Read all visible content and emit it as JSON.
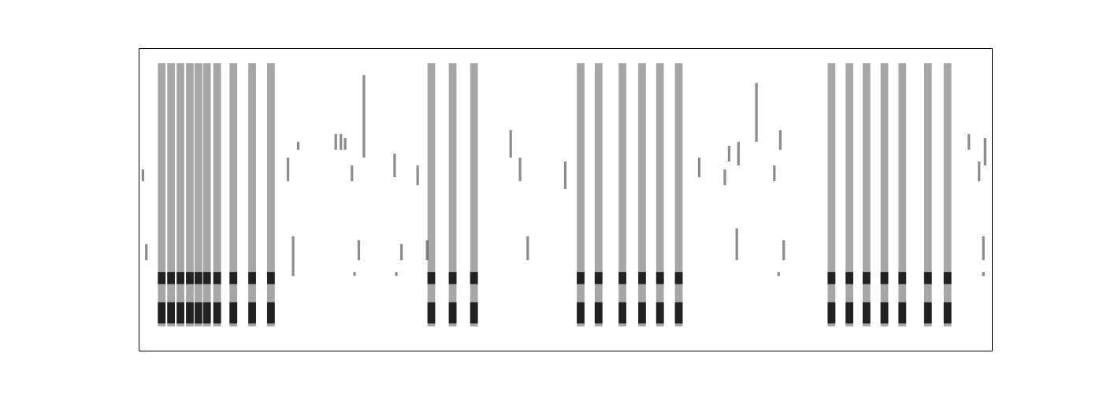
{
  "chart_data": {
    "type": "spectrogram",
    "xlim": [
      0,
      100
    ],
    "ylim": [
      0,
      100
    ],
    "tick_labels": false,
    "color": "#000000",
    "x": [
      2.7,
      3.8,
      4.9,
      6.0,
      7.0,
      8.0,
      9.2,
      11.1,
      13.3,
      15.5,
      34.3,
      36.8,
      39.3,
      51.8,
      53.9,
      56.7,
      59.0,
      61.1,
      63.3,
      81.2,
      83.3,
      85.3,
      87.4,
      89.5,
      92.5,
      94.8,
      2.7,
      3.8,
      4.9,
      6.0,
      7.0,
      8.0,
      9.2,
      11.1,
      13.3,
      15.5,
      34.3,
      36.8,
      39.3,
      51.8,
      53.9,
      56.7,
      59.0,
      61.1,
      63.3,
      81.2,
      83.3,
      85.3,
      87.4,
      89.5,
      92.5,
      94.8,
      2.7,
      3.8,
      4.9,
      6.0,
      7.0,
      8.0,
      9.2,
      11.1,
      13.3,
      15.5,
      34.3,
      36.8,
      39.3,
      51.8,
      53.9,
      56.7,
      59.0,
      61.1,
      63.3,
      81.2,
      83.3,
      85.3,
      87.4,
      89.5,
      92.5,
      94.8,
      0.5,
      0.9,
      17.5,
      18.7,
      18.1,
      23.1,
      23.7,
      24.2,
      25.0,
      25.8,
      26.4,
      30.0,
      30.8,
      32.7,
      33.8,
      43.6,
      44.7,
      45.6,
      50.0,
      65.7,
      68.7,
      69.2,
      70.3,
      70.1,
      72.4,
      74.5,
      75.2,
      75.6,
      97.3,
      98.5,
      99.2,
      99.0,
      25.3,
      30.2,
      75.0,
      99.0
    ],
    "duration": [
      0.9,
      0.9,
      0.9,
      0.9,
      0.9,
      0.9,
      0.9,
      0.9,
      0.9,
      0.9,
      0.9,
      0.9,
      0.9,
      0.9,
      0.9,
      0.9,
      0.9,
      0.9,
      0.9,
      0.9,
      0.9,
      0.9,
      0.9,
      0.9,
      0.9,
      0.9,
      0.9,
      0.9,
      0.9,
      0.9,
      0.9,
      0.9,
      0.9,
      0.9,
      0.9,
      0.9,
      0.9,
      0.9,
      0.9,
      0.9,
      0.9,
      0.9,
      0.9,
      0.9,
      0.9,
      0.9,
      0.9,
      0.9,
      0.9,
      0.9,
      0.9,
      0.9,
      0.9,
      0.9,
      0.9,
      0.9,
      0.9,
      0.9,
      0.9,
      0.9,
      0.9,
      0.9,
      0.9,
      0.9,
      0.9,
      0.9,
      0.9,
      0.9,
      0.9,
      0.9,
      0.9,
      0.9,
      0.9,
      0.9,
      0.9,
      0.9,
      0.9,
      0.9,
      0.3,
      0.3,
      0.3,
      0.3,
      0.3,
      0.3,
      0.3,
      0.3,
      0.3,
      0.3,
      0.3,
      0.3,
      0.3,
      0.3,
      0.3,
      0.3,
      0.3,
      0.3,
      0.3,
      0.3,
      0.3,
      0.3,
      0.3,
      0.3,
      0.3,
      0.3,
      0.3,
      0.3,
      0.3,
      0.3,
      0.3,
      0.3,
      0.3,
      0.3,
      0.3,
      0.3
    ],
    "low": [
      8,
      8,
      8,
      8,
      8,
      8,
      8,
      8,
      8,
      8,
      8,
      8,
      8,
      8,
      8,
      8,
      8,
      8,
      8,
      8,
      8,
      8,
      8,
      8,
      8,
      8,
      22,
      22,
      22,
      22,
      22,
      22,
      22,
      22,
      22,
      22,
      22,
      22,
      22,
      22,
      22,
      22,
      22,
      22,
      22,
      22,
      22,
      22,
      22,
      22,
      22,
      22,
      9,
      9,
      9,
      9,
      9,
      9,
      9,
      9,
      9,
      9,
      9,
      9,
      9,
      9,
      9,
      9,
      9,
      9,
      9,
      9,
      9,
      9,
      9,
      9,
      9,
      9,
      56.0,
      29.9,
      56.0,
      66.4,
      24.7,
      66.4,
      66.4,
      66.4,
      56.0,
      29.9,
      63.8,
      57.3,
      29.9,
      54.7,
      29.9,
      63.8,
      56.0,
      29.9,
      53.4,
      57.3,
      54.7,
      62.5,
      61.2,
      29.9,
      69.0,
      56.0,
      66.4,
      29.9,
      66.4,
      56.0,
      61.2,
      29.9,
      24.7,
      24.7,
      24.7,
      24.7
    ],
    "high": [
      95,
      95,
      95,
      95,
      95,
      95,
      95,
      95,
      95,
      95,
      95,
      95,
      95,
      95,
      95,
      95,
      95,
      95,
      95,
      95,
      95,
      95,
      95,
      95,
      95,
      95,
      26,
      26,
      26,
      26,
      26,
      26,
      26,
      26,
      26,
      26,
      26,
      26,
      26,
      26,
      26,
      26,
      26,
      26,
      26,
      26,
      26,
      26,
      26,
      26,
      26,
      26,
      16,
      16,
      16,
      16,
      16,
      16,
      16,
      16,
      16,
      16,
      16,
      16,
      16,
      16,
      16,
      16,
      16,
      16,
      16,
      16,
      16,
      16,
      16,
      16,
      16,
      16,
      59.9,
      35.2,
      63.8,
      69.0,
      37.8,
      71.6,
      71.6,
      70.3,
      61.2,
      36.5,
      91.1,
      65.1,
      35.2,
      61.2,
      36.5,
      72.9,
      63.8,
      37.8,
      62.5,
      63.8,
      59.9,
      67.7,
      69.0,
      40.4,
      88.5,
      61.2,
      72.9,
      36.5,
      71.6,
      62.5,
      70.3,
      37.8,
      26.0,
      26.0,
      26.0,
      26.0
    ],
    "intensity": [
      0.35,
      0.35,
      0.35,
      0.35,
      0.35,
      0.35,
      0.35,
      0.35,
      0.35,
      0.35,
      0.35,
      0.35,
      0.35,
      0.35,
      0.35,
      0.35,
      0.35,
      0.35,
      0.35,
      0.35,
      0.35,
      0.35,
      0.35,
      0.35,
      0.35,
      0.35,
      0.8,
      0.8,
      0.8,
      0.8,
      0.8,
      0.8,
      0.8,
      0.8,
      0.8,
      0.8,
      0.8,
      0.8,
      0.8,
      0.8,
      0.8,
      0.8,
      0.8,
      0.8,
      0.8,
      0.8,
      0.8,
      0.8,
      0.8,
      0.8,
      0.8,
      0.8,
      0.8,
      0.8,
      0.8,
      0.8,
      0.8,
      0.8,
      0.8,
      0.8,
      0.8,
      0.8,
      0.8,
      0.8,
      0.8,
      0.8,
      0.8,
      0.8,
      0.8,
      0.8,
      0.8,
      0.8,
      0.8,
      0.8,
      0.8,
      0.8,
      0.8,
      0.8,
      0.45,
      0.45,
      0.45,
      0.45,
      0.45,
      0.45,
      0.45,
      0.45,
      0.45,
      0.45,
      0.45,
      0.45,
      0.45,
      0.45,
      0.45,
      0.45,
      0.45,
      0.45,
      0.45,
      0.45,
      0.45,
      0.45,
      0.45,
      0.45,
      0.45,
      0.45,
      0.45,
      0.45,
      0.45,
      0.45,
      0.45,
      0.45,
      0.45,
      0.45,
      0.45,
      0.45
    ]
  }
}
